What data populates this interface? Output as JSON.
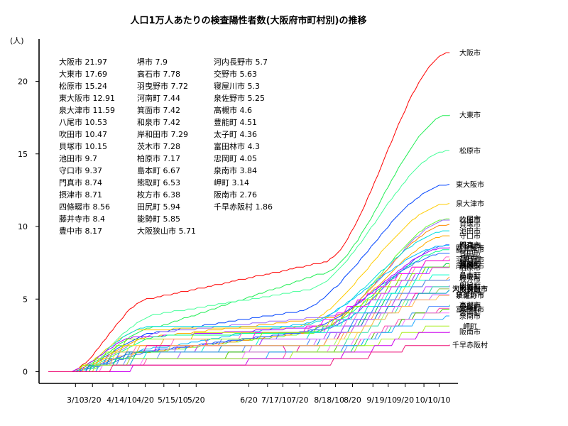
{
  "chart_data": {
    "type": "line",
    "title": "人口1万人あたりの検査陽性者数(大阪府市町村別)の推移",
    "ylabel": "(人)",
    "xlabel": "",
    "ylim": [
      0,
      22.5
    ],
    "yticks": [
      0,
      5,
      10,
      15,
      20
    ],
    "x_ticks": [
      "3/10",
      "3/20",
      "4/1",
      "4/10",
      "4/20",
      "5/1",
      "5/10",
      "5/20",
      "6/20",
      "7/1",
      "7/10",
      "7/20",
      "8/1",
      "8/10",
      "8/20",
      "9/1",
      "9/10",
      "9/20",
      "10/1",
      "10/10"
    ],
    "x_end": "10/16",
    "grid": false,
    "legend_columns": [
      [
        "大阪市 21.97",
        "大東市 17.69",
        "松原市 15.24",
        "東大阪市 12.91",
        "泉大津市 11.59",
        "八尾市 10.53",
        "吹田市 10.47",
        "貝塚市 10.15",
        "池田市 9.7",
        "守口市 9.37",
        "門真市 8.74",
        "摂津市 8.71",
        "四條畷市 8.56",
        "藤井寺市 8.4",
        "豊中市 8.17"
      ],
      [
        "堺市 7.9",
        "高石市 7.78",
        "羽曳野市 7.72",
        "河南町 7.44",
        "箕面市 7.42",
        "和泉市 7.42",
        "岸和田市 7.29",
        "茨木市 7.28",
        "柏原市 7.17",
        "島本町 6.67",
        "熊取町 6.53",
        "枚方市 6.38",
        "田尻町 5.94",
        "能勢町 5.85",
        "大阪狭山市 5.71"
      ],
      [
        "河内長野市 5.7",
        "交野市 5.63",
        "寝屋川市 5.3",
        "泉佐野市 5.25",
        "高槻市 4.6",
        "豊能町 4.51",
        "太子町 4.36",
        "富田林市 4.3",
        "忠岡町 4.05",
        "泉南市 3.84",
        "岬町 3.14",
        "阪南市 2.76",
        "千早赤阪村 1.86"
      ]
    ],
    "series": [
      {
        "name": "大阪市",
        "value": 21.97,
        "color": "#ff0000"
      },
      {
        "name": "大東市",
        "value": 17.69,
        "color": "#22ee55"
      },
      {
        "name": "松原市",
        "value": 15.24,
        "color": "#44ff99"
      },
      {
        "name": "東大阪市",
        "value": 12.91,
        "color": "#0044ff"
      },
      {
        "name": "泉大津市",
        "value": 11.59,
        "color": "#ffcc00"
      },
      {
        "name": "八尾市",
        "value": 10.53,
        "color": "#66ff33"
      },
      {
        "name": "吹田市",
        "value": 10.47,
        "color": "#9966ff"
      },
      {
        "name": "貝塚市",
        "value": 10.15,
        "color": "#ff8800"
      },
      {
        "name": "池田市",
        "value": 9.7,
        "color": "#00dddd"
      },
      {
        "name": "守口市",
        "value": 9.37,
        "color": "#ffaa00"
      },
      {
        "name": "門真市",
        "value": 8.74,
        "color": "#3355ff"
      },
      {
        "name": "摂津市",
        "value": 8.71,
        "color": "#00bbff"
      },
      {
        "name": "四條畷市",
        "value": 8.56,
        "color": "#aa00ff"
      },
      {
        "name": "藤井寺市",
        "value": 8.4,
        "color": "#00ff88"
      },
      {
        "name": "豊中市",
        "value": 8.17,
        "color": "#2266ff"
      },
      {
        "name": "堺市",
        "value": 7.9,
        "color": "#ff66cc"
      },
      {
        "name": "高石市",
        "value": 7.78,
        "color": "#ccdd00"
      },
      {
        "name": "羽曳野市",
        "value": 7.72,
        "color": "#ff00ff"
      },
      {
        "name": "河南町",
        "value": 7.44,
        "color": "#00cc44"
      },
      {
        "name": "箕面市",
        "value": 7.42,
        "color": "#5577ff"
      },
      {
        "name": "和泉市",
        "value": 7.42,
        "color": "#ffdd33"
      },
      {
        "name": "岸和田市",
        "value": 7.29,
        "color": "#11aaee"
      },
      {
        "name": "茨木市",
        "value": 7.28,
        "color": "#88ee00"
      },
      {
        "name": "柏原市",
        "value": 7.17,
        "color": "#dd33ff"
      },
      {
        "name": "島本町",
        "value": 6.67,
        "color": "#00ffcc"
      },
      {
        "name": "熊取町",
        "value": 6.53,
        "color": "#ff9933"
      },
      {
        "name": "枚方市",
        "value": 6.38,
        "color": "#4488ff"
      },
      {
        "name": "田尻町",
        "value": 5.94,
        "color": "#bb44ff"
      },
      {
        "name": "能勢町",
        "value": 5.85,
        "color": "#33ddaa"
      },
      {
        "name": "大阪狭山市",
        "value": 5.71,
        "color": "#ee0099"
      },
      {
        "name": "河内長野市",
        "value": 5.7,
        "color": "#99ff66"
      },
      {
        "name": "交野市",
        "value": 5.63,
        "color": "#0099cc"
      },
      {
        "name": "寝屋川市",
        "value": 5.3,
        "color": "#cc66ff"
      },
      {
        "name": "泉佐野市",
        "value": 5.25,
        "color": "#ffbb55"
      },
      {
        "name": "高槻市",
        "value": 4.6,
        "color": "#00ee66"
      },
      {
        "name": "豊能町",
        "value": 4.51,
        "color": "#6699ff"
      },
      {
        "name": "太子町",
        "value": 4.36,
        "color": "#ff44aa"
      },
      {
        "name": "富田林市",
        "value": 4.3,
        "color": "#55cc00"
      },
      {
        "name": "忠岡町",
        "value": 4.05,
        "color": "#ff77ff"
      },
      {
        "name": "泉南市",
        "value": 3.84,
        "color": "#22aaff"
      },
      {
        "name": "岬町",
        "value": 3.14,
        "color": "#aaee22"
      },
      {
        "name": "阪南市",
        "value": 2.76,
        "color": "#cc00ee"
      },
      {
        "name": "千早赤阪村",
        "value": 1.86,
        "color": "#ee1177"
      }
    ]
  }
}
